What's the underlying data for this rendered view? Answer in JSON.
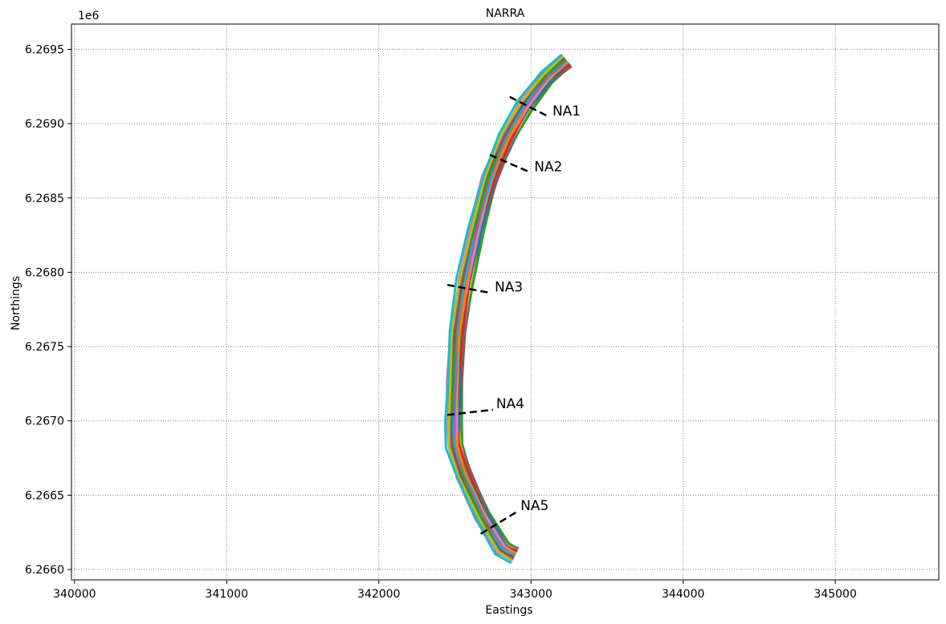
{
  "chart_data": {
    "type": "line",
    "title": "NARRA",
    "xlabel": "Eastings",
    "ylabel": "Northings",
    "y_offset_label": "1e6",
    "xlim": [
      339980,
      345680
    ],
    "ylim": [
      6265930,
      6269670
    ],
    "x_ticks": [
      340000,
      341000,
      342000,
      343000,
      344000,
      345000
    ],
    "x_tick_labels": [
      "340000",
      "341000",
      "342000",
      "343000",
      "344000",
      "345000"
    ],
    "y_ticks": [
      6266000,
      6266500,
      6267000,
      6267500,
      6268000,
      6268500,
      6269000,
      6269500
    ],
    "y_tick_labels": [
      "6.2660",
      "6.2665",
      "6.2670",
      "6.2675",
      "6.2680",
      "6.2685",
      "6.2690",
      "6.2695"
    ],
    "grid": true,
    "shoreline_centerline": [
      {
        "x": 343230,
        "y": 6269420
      },
      {
        "x": 343100,
        "y": 6269310
      },
      {
        "x": 342960,
        "y": 6269120
      },
      {
        "x": 342840,
        "y": 6268900
      },
      {
        "x": 342730,
        "y": 6268630
      },
      {
        "x": 342640,
        "y": 6268300
      },
      {
        "x": 342570,
        "y": 6267950
      },
      {
        "x": 342520,
        "y": 6267600
      },
      {
        "x": 342500,
        "y": 6267270
      },
      {
        "x": 342490,
        "y": 6266990
      },
      {
        "x": 342500,
        "y": 6266830
      },
      {
        "x": 342560,
        "y": 6266640
      },
      {
        "x": 342680,
        "y": 6266360
      },
      {
        "x": 342810,
        "y": 6266140
      },
      {
        "x": 342890,
        "y": 6266100
      }
    ],
    "series_colors": [
      "#1f77b4",
      "#ff7f0e",
      "#2ca02c",
      "#d62728",
      "#9467bd",
      "#8c564b",
      "#e377c2",
      "#7f7f7f",
      "#bcbd22",
      "#17becf"
    ],
    "transects": [
      {
        "label": "NA1",
        "start": {
          "x": 342860,
          "y": 6269180
        },
        "end": {
          "x": 343120,
          "y": 6269045
        }
      },
      {
        "label": "NA2",
        "start": {
          "x": 342730,
          "y": 6268790
        },
        "end": {
          "x": 343000,
          "y": 6268670
        }
      },
      {
        "label": "NA3",
        "start": {
          "x": 342450,
          "y": 6267915
        },
        "end": {
          "x": 342740,
          "y": 6267860
        }
      },
      {
        "label": "NA4",
        "start": {
          "x": 342450,
          "y": 6267040
        },
        "end": {
          "x": 342750,
          "y": 6267075
        }
      },
      {
        "label": "NA5",
        "start": {
          "x": 342670,
          "y": 6266240
        },
        "end": {
          "x": 342910,
          "y": 6266390
        }
      }
    ],
    "line_color": "#000000",
    "grid_color": "#808080"
  }
}
